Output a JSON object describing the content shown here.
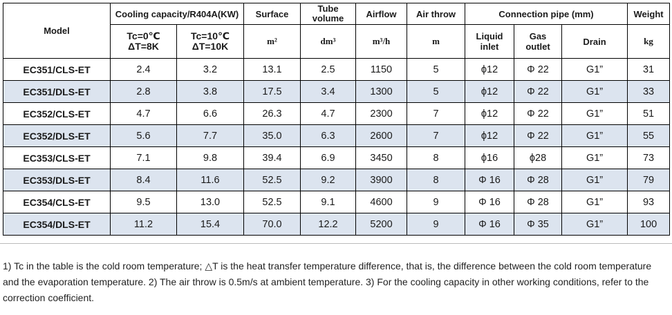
{
  "headers": {
    "model": "Model",
    "cooling": "Cooling capacity/R404A(KW)",
    "surface": "Surface",
    "tube_volume": "Tube volume",
    "airflow": "Airflow",
    "air_throw": "Air throw",
    "connection": "Connection pipe (mm)",
    "weight": "Weight"
  },
  "subheaders": {
    "tc0_line1": "Tc=0℃",
    "tc0_line2": "ΔT=8K",
    "tc10_line1": "Tc=10℃",
    "tc10_line2": "ΔT=10K",
    "surface_unit": "m²",
    "tube_unit": "dm³",
    "airflow_unit": "m³/h",
    "throw_unit": "m",
    "liquid_line1": "Liquid",
    "liquid_line2": "inlet",
    "gas_line1": "Gas",
    "gas_line2": "outlet",
    "drain": "Drain",
    "weight_unit": "kg"
  },
  "rows": [
    {
      "model": "EC351/CLS-ET",
      "tc0": "2.4",
      "tc10": "3.2",
      "surface": "13.1",
      "tube": "2.5",
      "airflow": "1150",
      "throw": "5",
      "liquid": "ϕ12",
      "gas": "Φ 22",
      "drain": "G1”",
      "weight": "31"
    },
    {
      "model": "EC351/DLS-ET",
      "tc0": "2.8",
      "tc10": "3.8",
      "surface": "17.5",
      "tube": "3.4",
      "airflow": "1300",
      "throw": "5",
      "liquid": "ϕ12",
      "gas": "Φ 22",
      "drain": "G1”",
      "weight": "33"
    },
    {
      "model": "EC352/CLS-ET",
      "tc0": "4.7",
      "tc10": "6.6",
      "surface": "26.3",
      "tube": "4.7",
      "airflow": "2300",
      "throw": "7",
      "liquid": "ϕ12",
      "gas": "Φ 22",
      "drain": "G1”",
      "weight": "51"
    },
    {
      "model": "EC352/DLS-ET",
      "tc0": "5.6",
      "tc10": "7.7",
      "surface": "35.0",
      "tube": "6.3",
      "airflow": "2600",
      "throw": "7",
      "liquid": "ϕ12",
      "gas": "Φ 22",
      "drain": "G1”",
      "weight": "55"
    },
    {
      "model": "EC353/CLS-ET",
      "tc0": "7.1",
      "tc10": "9.8",
      "surface": "39.4",
      "tube": "6.9",
      "airflow": "3450",
      "throw": "8",
      "liquid": "ϕ16",
      "gas": "ϕ28",
      "drain": "G1”",
      "weight": "73"
    },
    {
      "model": "EC353/DLS-ET",
      "tc0": "8.4",
      "tc10": "11.6",
      "surface": "52.5",
      "tube": "9.2",
      "airflow": "3900",
      "throw": "8",
      "liquid": "Φ 16",
      "gas": "Φ 28",
      "drain": "G1”",
      "weight": "79"
    },
    {
      "model": "EC354/CLS-ET",
      "tc0": "9.5",
      "tc10": "13.0",
      "surface": "52.5",
      "tube": "9.1",
      "airflow": "4600",
      "throw": "9",
      "liquid": "Φ 16",
      "gas": "Φ 28",
      "drain": "G1”",
      "weight": "93"
    },
    {
      "model": "EC354/DLS-ET",
      "tc0": "11.2",
      "tc10": "15.4",
      "surface": "70.0",
      "tube": "12.2",
      "airflow": "5200",
      "throw": "9",
      "liquid": "Φ 16",
      "gas": "Φ 35",
      "drain": "G1”",
      "weight": "100"
    }
  ],
  "notes": "1) Tc in the table is the cold room temperature; △T is the heat transfer temperature difference, that is, the difference between the cold room temperature and the evaporation temperature. 2) The air throw is 0.5m/s at ambient temperature. 3) For the cooling capacity in other working conditions, refer to the correction coefficient."
}
